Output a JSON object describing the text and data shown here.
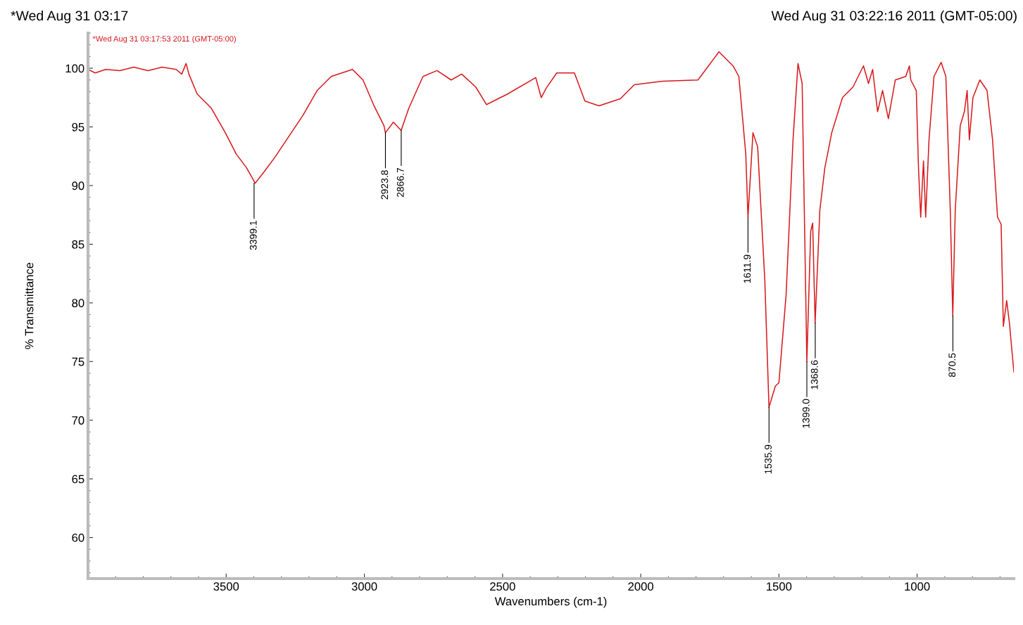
{
  "chart_data": {
    "type": "line",
    "title": "*Wed Aug 31 03:17",
    "subtitle": "Wed Aug 31 03:22:16 2011 (GMT-05:00)",
    "xlabel": "Wavenumbers (cm-1)",
    "ylabel": "% Transmittance",
    "xlim": [
      4000,
      650
    ],
    "ylim": [
      56.5,
      103
    ],
    "xticks": [
      3500,
      3000,
      2500,
      2000,
      1500,
      1000
    ],
    "yticks": [
      60,
      65,
      70,
      75,
      80,
      85,
      90,
      95,
      100
    ],
    "grid": false,
    "line_style": "solid",
    "marker": "none",
    "series": [
      {
        "name": "*Wed Aug 31 03:17:53 2011 (GMT-05:00)",
        "color": "#d7191c",
        "x": [
          4000,
          3974,
          3936,
          3885,
          3834,
          3783,
          3732,
          3681,
          3661,
          3645,
          3635,
          3605,
          3554,
          3503,
          3464,
          3426,
          3395,
          3362,
          3324,
          3273,
          3222,
          3171,
          3120,
          3043,
          3005,
          2967,
          2929,
          2924,
          2895,
          2867,
          2839,
          2788,
          2737,
          2686,
          2648,
          2597,
          2558,
          2482,
          2380,
          2360,
          2342,
          2304,
          2240,
          2202,
          2151,
          2074,
          2023,
          1921,
          1793,
          1717,
          1666,
          1645,
          1620,
          1612,
          1594,
          1577,
          1551,
          1536,
          1513,
          1500,
          1474,
          1449,
          1431,
          1416,
          1403,
          1399,
          1385,
          1378,
          1369,
          1352,
          1334,
          1309,
          1270,
          1232,
          1207,
          1194,
          1176,
          1161,
          1143,
          1125,
          1104,
          1079,
          1041,
          1028,
          1023,
          1003,
          995,
          987,
          977,
          969,
          957,
          939,
          913,
          896,
          880,
          871,
          862,
          844,
          829,
          819,
          811,
          798,
          773,
          747,
          727,
          709,
          696,
          688,
          676,
          666,
          650
        ],
        "values": [
          99.9,
          99.6,
          99.9,
          99.8,
          100.1,
          99.8,
          100.1,
          99.9,
          99.5,
          100.4,
          99.5,
          97.8,
          96.6,
          94.5,
          92.7,
          91.5,
          90.2,
          91.2,
          92.4,
          94.2,
          96.0,
          98.1,
          99.3,
          99.9,
          99.0,
          96.9,
          95.1,
          94.5,
          95.4,
          94.7,
          96.6,
          99.3,
          99.8,
          99.0,
          99.5,
          98.4,
          96.9,
          97.8,
          99.2,
          97.5,
          98.3,
          99.6,
          99.6,
          97.2,
          96.8,
          97.4,
          98.6,
          98.9,
          99.0,
          101.4,
          100.2,
          99.3,
          92.7,
          87.3,
          94.5,
          93.3,
          81.9,
          71.1,
          72.9,
          73.2,
          80.7,
          93.9,
          100.4,
          98.7,
          80.7,
          75.0,
          86.1,
          86.8,
          78.3,
          87.9,
          91.5,
          94.5,
          97.5,
          98.4,
          99.6,
          100.2,
          98.7,
          99.9,
          96.3,
          98.1,
          95.7,
          99.0,
          99.3,
          100.2,
          99.0,
          98.1,
          91.5,
          87.3,
          92.1,
          87.3,
          93.9,
          99.3,
          100.5,
          99.3,
          87.9,
          78.9,
          87.9,
          95.1,
          96.3,
          98.1,
          93.9,
          97.5,
          99.0,
          98.1,
          93.9,
          87.3,
          86.7,
          78.0,
          80.2,
          78.3,
          74.1
        ]
      }
    ],
    "annotations": [
      {
        "text": "3399.1",
        "x": 3399.1,
        "y": 90.2
      },
      {
        "text": "2923.8",
        "x": 2923.8,
        "y": 94.5
      },
      {
        "text": "2866.7",
        "x": 2866.7,
        "y": 94.7
      },
      {
        "text": "1611.9",
        "x": 1611.9,
        "y": 87.3
      },
      {
        "text": "1535.9",
        "x": 1535.9,
        "y": 71.1
      },
      {
        "text": "1399.0",
        "x": 1399.0,
        "y": 75.0
      },
      {
        "text": "1368.6",
        "x": 1368.6,
        "y": 78.3
      },
      {
        "text": "870.5",
        "x": 870.5,
        "y": 78.9
      }
    ]
  }
}
